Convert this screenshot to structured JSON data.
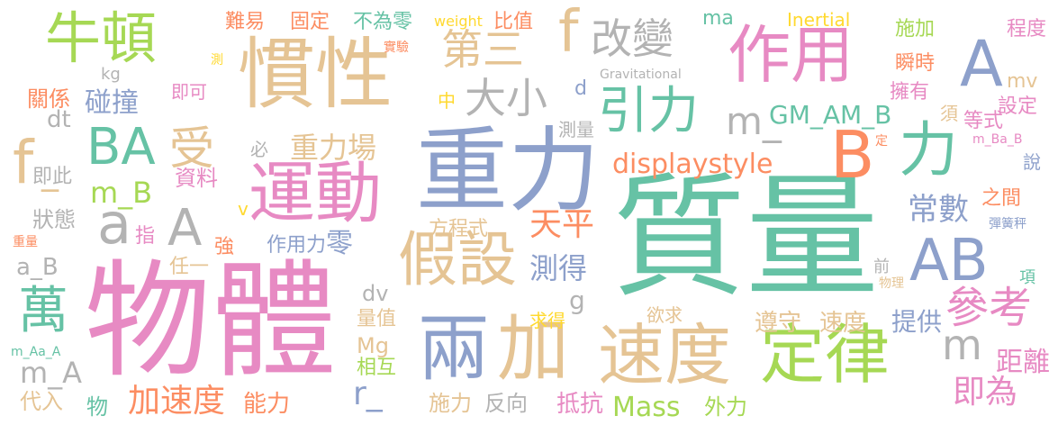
{
  "word_cloud": {
    "words": [
      {
        "text": "質量",
        "color": "#66c2a5"
      },
      {
        "text": "物體",
        "color": "#e78ac3"
      },
      {
        "text": "重力",
        "color": "#8da0cb"
      },
      {
        "text": "慣性",
        "color": "#e5c494"
      },
      {
        "text": "兩",
        "color": "#8da0cb"
      },
      {
        "text": "加",
        "color": "#e5c494"
      },
      {
        "text": "運動",
        "color": "#e78ac3"
      },
      {
        "text": "速度",
        "color": "#e5c494"
      },
      {
        "text": "定律",
        "color": "#a6d854"
      },
      {
        "text": "作用",
        "color": "#e78ac3"
      },
      {
        "text": "力",
        "color": "#66c2a5"
      },
      {
        "text": "假設",
        "color": "#e5c494"
      },
      {
        "text": "牛頓",
        "color": "#a6d854"
      },
      {
        "text": "B",
        "color": "#fc8d62"
      },
      {
        "text": "A",
        "color": "#8da0cb"
      },
      {
        "text": "AB",
        "color": "#8da0cb"
      },
      {
        "text": "BA",
        "color": "#66c2a5"
      },
      {
        "text": "萬",
        "color": "#66c2a5"
      },
      {
        "text": "引力",
        "color": "#66c2a5"
      },
      {
        "text": "參考",
        "color": "#e78ac3"
      },
      {
        "text": "f",
        "color": "#e5c494"
      },
      {
        "text": "f",
        "color": "#e5c494"
      },
      {
        "text": "受",
        "color": "#e5c494"
      },
      {
        "text": "A",
        "color": "#b3b3b3"
      },
      {
        "text": "a",
        "color": "#b3b3b3"
      },
      {
        "text": "大小",
        "color": "#b3b3b3"
      },
      {
        "text": "改變",
        "color": "#b3b3b3"
      },
      {
        "text": "第三",
        "color": "#e5c494"
      },
      {
        "text": "m",
        "color": "#b3b3b3"
      },
      {
        "text": "m_",
        "color": "#b3b3b3"
      },
      {
        "text": "即為",
        "color": "#e78ac3"
      },
      {
        "text": "加速度",
        "color": "#fc8d62"
      },
      {
        "text": "Mass",
        "color": "#a6d854"
      },
      {
        "text": "displaystyle",
        "color": "#fc8d62"
      },
      {
        "text": "重力場",
        "color": "#e5c494"
      },
      {
        "text": "天平",
        "color": "#fc8d62"
      },
      {
        "text": "測得",
        "color": "#8da0cb"
      },
      {
        "text": "常數",
        "color": "#8da0cb"
      },
      {
        "text": "零",
        "color": "#8da0cb"
      },
      {
        "text": "碰撞",
        "color": "#8da0cb"
      },
      {
        "text": "m_B",
        "color": "#a6d854"
      },
      {
        "text": "m_A",
        "color": "#b3b3b3"
      },
      {
        "text": "GM_AM_B",
        "color": "#66c2a5"
      },
      {
        "text": "距離",
        "color": "#e78ac3"
      },
      {
        "text": "提供",
        "color": "#8da0cb"
      },
      {
        "text": "遵守",
        "color": "#e5c494"
      },
      {
        "text": "速度",
        "color": "#e5c494"
      },
      {
        "text": "作用力",
        "color": "#8da0cb"
      },
      {
        "text": "方程式",
        "color": "#e5c494"
      },
      {
        "text": "施力",
        "color": "#e5c494"
      },
      {
        "text": "反向",
        "color": "#b3b3b3"
      },
      {
        "text": "抵抗",
        "color": "#e78ac3"
      },
      {
        "text": "外力",
        "color": "#a6d854"
      },
      {
        "text": "能力",
        "color": "#fc8d62"
      },
      {
        "text": "相互",
        "color": "#a6d854"
      },
      {
        "text": "量值",
        "color": "#e5c494"
      },
      {
        "text": "Mg",
        "color": "#e5c494"
      },
      {
        "text": "代入",
        "color": "#e5c494"
      },
      {
        "text": "物",
        "color": "#66c2a5"
      },
      {
        "text": "狀態",
        "color": "#b3b3b3"
      },
      {
        "text": "指",
        "color": "#e78ac3"
      },
      {
        "text": "強",
        "color": "#fc8d62"
      },
      {
        "text": "任一",
        "color": "#e5c494"
      },
      {
        "text": "a_B",
        "color": "#b3b3b3"
      },
      {
        "text": "資料",
        "color": "#e78ac3"
      },
      {
        "text": "即此",
        "color": "#b3b3b3"
      },
      {
        "text": "dt",
        "color": "#b3b3b3"
      },
      {
        "text": "關係",
        "color": "#fc8d62"
      },
      {
        "text": "kg",
        "color": "#b3b3b3"
      },
      {
        "text": "即可",
        "color": "#e78ac3"
      },
      {
        "text": "難易",
        "color": "#fc8d62"
      },
      {
        "text": "固定",
        "color": "#fc8d62"
      },
      {
        "text": "不為零",
        "color": "#66c2a5"
      },
      {
        "text": "weight",
        "color": "#ffd92f"
      },
      {
        "text": "比值",
        "color": "#fc8d62"
      },
      {
        "text": "ma",
        "color": "#66c2a5"
      },
      {
        "text": "Inertial",
        "color": "#ffd92f"
      },
      {
        "text": "施加",
        "color": "#a6d854"
      },
      {
        "text": "程度",
        "color": "#e78ac3"
      },
      {
        "text": "瞬時",
        "color": "#fc8d62"
      },
      {
        "text": "mv",
        "color": "#e5c494"
      },
      {
        "text": "擁有",
        "color": "#e78ac3"
      },
      {
        "text": "設定",
        "color": "#e78ac3"
      },
      {
        "text": "須",
        "color": "#e5c494"
      },
      {
        "text": "等式",
        "color": "#e78ac3"
      },
      {
        "text": "m_Ba_B",
        "color": "#e78ac3"
      },
      {
        "text": "說",
        "color": "#8da0cb"
      },
      {
        "text": "之間",
        "color": "#fc8d62"
      },
      {
        "text": "彈簧秤",
        "color": "#8da0cb"
      },
      {
        "text": "項",
        "color": "#66c2a5"
      },
      {
        "text": "前",
        "color": "#b3b3b3"
      },
      {
        "text": "物理",
        "color": "#e5c494"
      },
      {
        "text": "中",
        "color": "#ffd92f"
      },
      {
        "text": "d",
        "color": "#8da0cb"
      },
      {
        "text": "Gravitational",
        "color": "#b3b3b3"
      },
      {
        "text": "實驗",
        "color": "#fc8d62"
      },
      {
        "text": "測",
        "color": "#ffd92f"
      },
      {
        "text": "測量",
        "color": "#b3b3b3"
      },
      {
        "text": "必",
        "color": "#b3b3b3"
      },
      {
        "text": "定",
        "color": "#fc8d62"
      },
      {
        "text": "v",
        "color": "#ffd92f"
      },
      {
        "text": "g",
        "color": "#b3b3b3"
      },
      {
        "text": "dv",
        "color": "#b3b3b3"
      },
      {
        "text": "求得",
        "color": "#ffd92f"
      },
      {
        "text": "欲求",
        "color": "#e5c494"
      },
      {
        "text": "r_",
        "color": "#8da0cb"
      },
      {
        "text": "重量",
        "color": "#fc8d62"
      },
      {
        "text": "m_Aa_A",
        "color": "#66c2a5"
      },
      {
        "text": "_",
        "color": "#e5c494"
      }
    ]
  }
}
